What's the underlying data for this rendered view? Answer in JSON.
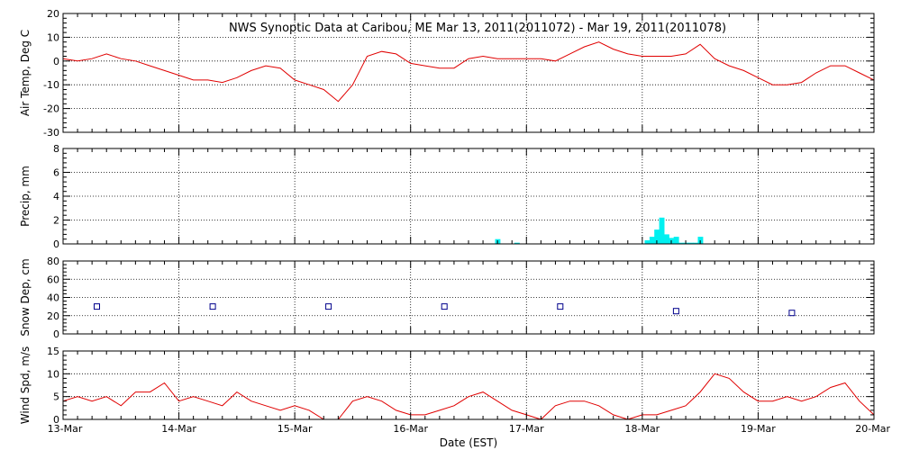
{
  "title": "NWS Synoptic Data at Caribou, ME   Mar 13, 2011(2011072) - Mar 19, 2011(2011078)",
  "xlabel": "Date (EST)",
  "x_tick_labels": [
    "13-Mar",
    "14-Mar",
    "15-Mar",
    "16-Mar",
    "17-Mar",
    "18-Mar",
    "19-Mar",
    "20-Mar"
  ],
  "colors": {
    "temp": "#e00000",
    "precip": "#00f0f0",
    "snow": "#00008b",
    "wind": "#e00000",
    "grid": "#000000"
  },
  "chart_data": [
    {
      "type": "line",
      "panel": "air-temp",
      "ylabel": "Air Temp, Deg C",
      "ylim": [
        -30,
        20
      ],
      "yticks": [
        20,
        10,
        0,
        -10,
        -20,
        -30
      ],
      "grid": true,
      "series": [
        {
          "x": [
            "13-Mar 00:00",
            "13-Mar 03:00",
            "13-Mar 06:00",
            "13-Mar 09:00",
            "13-Mar 12:00",
            "13-Mar 15:00",
            "13-Mar 18:00",
            "13-Mar 21:00",
            "14-Mar 00:00",
            "14-Mar 03:00",
            "14-Mar 06:00",
            "14-Mar 09:00",
            "14-Mar 12:00",
            "14-Mar 15:00",
            "14-Mar 18:00",
            "14-Mar 21:00",
            "15-Mar 00:00",
            "15-Mar 03:00",
            "15-Mar 06:00",
            "15-Mar 09:00",
            "15-Mar 12:00",
            "15-Mar 15:00",
            "15-Mar 18:00",
            "15-Mar 21:00",
            "16-Mar 00:00",
            "16-Mar 03:00",
            "16-Mar 06:00",
            "16-Mar 09:00",
            "16-Mar 12:00",
            "16-Mar 15:00",
            "16-Mar 18:00",
            "16-Mar 21:00",
            "17-Mar 00:00",
            "17-Mar 03:00",
            "17-Mar 06:00",
            "17-Mar 09:00",
            "17-Mar 12:00",
            "17-Mar 15:00",
            "17-Mar 18:00",
            "17-Mar 21:00",
            "18-Mar 00:00",
            "18-Mar 03:00",
            "18-Mar 06:00",
            "18-Mar 09:00",
            "18-Mar 12:00",
            "18-Mar 15:00",
            "18-Mar 18:00",
            "18-Mar 21:00",
            "19-Mar 00:00",
            "19-Mar 03:00",
            "19-Mar 06:00",
            "19-Mar 09:00",
            "19-Mar 12:00",
            "19-Mar 15:00",
            "19-Mar 18:00",
            "19-Mar 21:00",
            "20-Mar 00:00"
          ],
          "y": [
            1,
            0,
            1,
            3,
            1,
            0,
            -2,
            -4,
            -6,
            -8,
            -8,
            -9,
            -7,
            -4,
            -2,
            -3,
            -8,
            -10,
            -12,
            -17,
            -10,
            2,
            4,
            3,
            -1,
            -2,
            -3,
            -3,
            1,
            2,
            1,
            1,
            1,
            1,
            0,
            3,
            6,
            8,
            5,
            3,
            2,
            2,
            2,
            3,
            7,
            1,
            -2,
            -4,
            -7,
            -10,
            -10,
            -9,
            -5,
            -2,
            -2,
            -5,
            -8
          ]
        }
      ]
    },
    {
      "type": "bar",
      "panel": "precip",
      "ylabel": "Precip, mm",
      "ylim": [
        0,
        8
      ],
      "yticks": [
        8,
        6,
        4,
        2,
        0
      ],
      "grid": true,
      "series": [
        {
          "x": [
            "16-Mar 18:00",
            "16-Mar 22:00",
            "18-Mar 01:00",
            "18-Mar 02:00",
            "18-Mar 03:00",
            "18-Mar 04:00",
            "18-Mar 05:00",
            "18-Mar 06:00",
            "18-Mar 07:00",
            "18-Mar 08:00",
            "18-Mar 09:00",
            "18-Mar 10:00",
            "18-Mar 11:00",
            "18-Mar 12:00"
          ],
          "y": [
            0.4,
            0.1,
            0.3,
            0.6,
            1.2,
            2.2,
            0.8,
            0.5,
            0.6,
            0.1,
            0.1,
            0.1,
            0.1,
            0.6
          ]
        }
      ]
    },
    {
      "type": "scatter",
      "panel": "snow-depth",
      "ylabel": "Snow Dep, cm",
      "ylim": [
        0,
        80
      ],
      "yticks": [
        80,
        60,
        40,
        20,
        0
      ],
      "grid": true,
      "series": [
        {
          "x": [
            "13-Mar 07:00",
            "14-Mar 07:00",
            "15-Mar 07:00",
            "16-Mar 07:00",
            "17-Mar 07:00",
            "18-Mar 07:00",
            "19-Mar 07:00"
          ],
          "y": [
            30,
            30,
            30,
            30,
            30,
            25,
            23
          ]
        }
      ]
    },
    {
      "type": "line",
      "panel": "wind-speed",
      "ylabel": "Wind Spd, m/s",
      "ylim": [
        0,
        15
      ],
      "yticks": [
        15,
        10,
        5,
        0
      ],
      "grid": true,
      "series": [
        {
          "x": [
            "13-Mar 00:00",
            "13-Mar 03:00",
            "13-Mar 06:00",
            "13-Mar 09:00",
            "13-Mar 12:00",
            "13-Mar 15:00",
            "13-Mar 18:00",
            "13-Mar 21:00",
            "14-Mar 00:00",
            "14-Mar 03:00",
            "14-Mar 06:00",
            "14-Mar 09:00",
            "14-Mar 12:00",
            "14-Mar 15:00",
            "14-Mar 18:00",
            "14-Mar 21:00",
            "15-Mar 00:00",
            "15-Mar 03:00",
            "15-Mar 06:00",
            "15-Mar 09:00",
            "15-Mar 12:00",
            "15-Mar 15:00",
            "15-Mar 18:00",
            "15-Mar 21:00",
            "16-Mar 00:00",
            "16-Mar 03:00",
            "16-Mar 06:00",
            "16-Mar 09:00",
            "16-Mar 12:00",
            "16-Mar 15:00",
            "16-Mar 18:00",
            "16-Mar 21:00",
            "17-Mar 00:00",
            "17-Mar 03:00",
            "17-Mar 06:00",
            "17-Mar 09:00",
            "17-Mar 12:00",
            "17-Mar 15:00",
            "17-Mar 18:00",
            "17-Mar 21:00",
            "18-Mar 00:00",
            "18-Mar 03:00",
            "18-Mar 06:00",
            "18-Mar 09:00",
            "18-Mar 12:00",
            "18-Mar 15:00",
            "18-Mar 18:00",
            "18-Mar 21:00",
            "19-Mar 00:00",
            "19-Mar 03:00",
            "19-Mar 06:00",
            "19-Mar 09:00",
            "19-Mar 12:00",
            "19-Mar 15:00",
            "19-Mar 18:00",
            "19-Mar 21:00",
            "20-Mar 00:00"
          ],
          "y": [
            4,
            5,
            4,
            5,
            3,
            6,
            6,
            8,
            4,
            5,
            4,
            3,
            6,
            4,
            3,
            2,
            3,
            2,
            0,
            0,
            4,
            5,
            4,
            2,
            1,
            1,
            2,
            3,
            5,
            6,
            4,
            2,
            1,
            0,
            3,
            4,
            4,
            3,
            1,
            0,
            1,
            1,
            2,
            3,
            6,
            10,
            9,
            6,
            4,
            4,
            5,
            4,
            5,
            7,
            8,
            4,
            1
          ]
        }
      ]
    }
  ]
}
